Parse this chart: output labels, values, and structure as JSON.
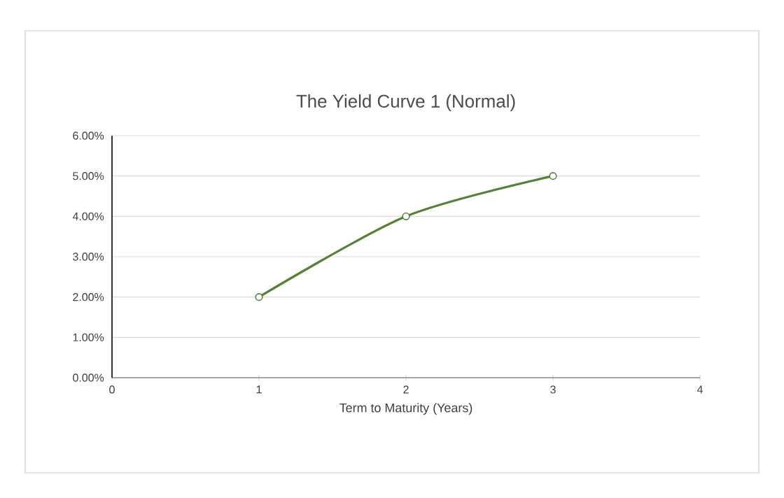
{
  "chart_data": {
    "type": "line",
    "title": "The Yield Curve 1 (Normal)",
    "xlabel": "Term to Maturity (Years)",
    "x": [
      1,
      2,
      3
    ],
    "series": [
      {
        "color": "#548235",
        "values": [
          2,
          4,
          5
        ]
      }
    ],
    "xlim": [
      0,
      4
    ],
    "xticks": [
      0,
      1,
      2,
      3,
      4
    ],
    "ylim": [
      0,
      6
    ],
    "yticks": [
      {
        "value": 0,
        "label": "0.00%"
      },
      {
        "value": 1,
        "label": "1.00%"
      },
      {
        "value": 2,
        "label": "2.00%"
      },
      {
        "value": 3,
        "label": "3.00%"
      },
      {
        "value": 4,
        "label": "4.00%"
      },
      {
        "value": 5,
        "label": "5.00%"
      },
      {
        "value": 6,
        "label": "6.00%"
      }
    ],
    "grid": "y",
    "marker": "circle"
  }
}
